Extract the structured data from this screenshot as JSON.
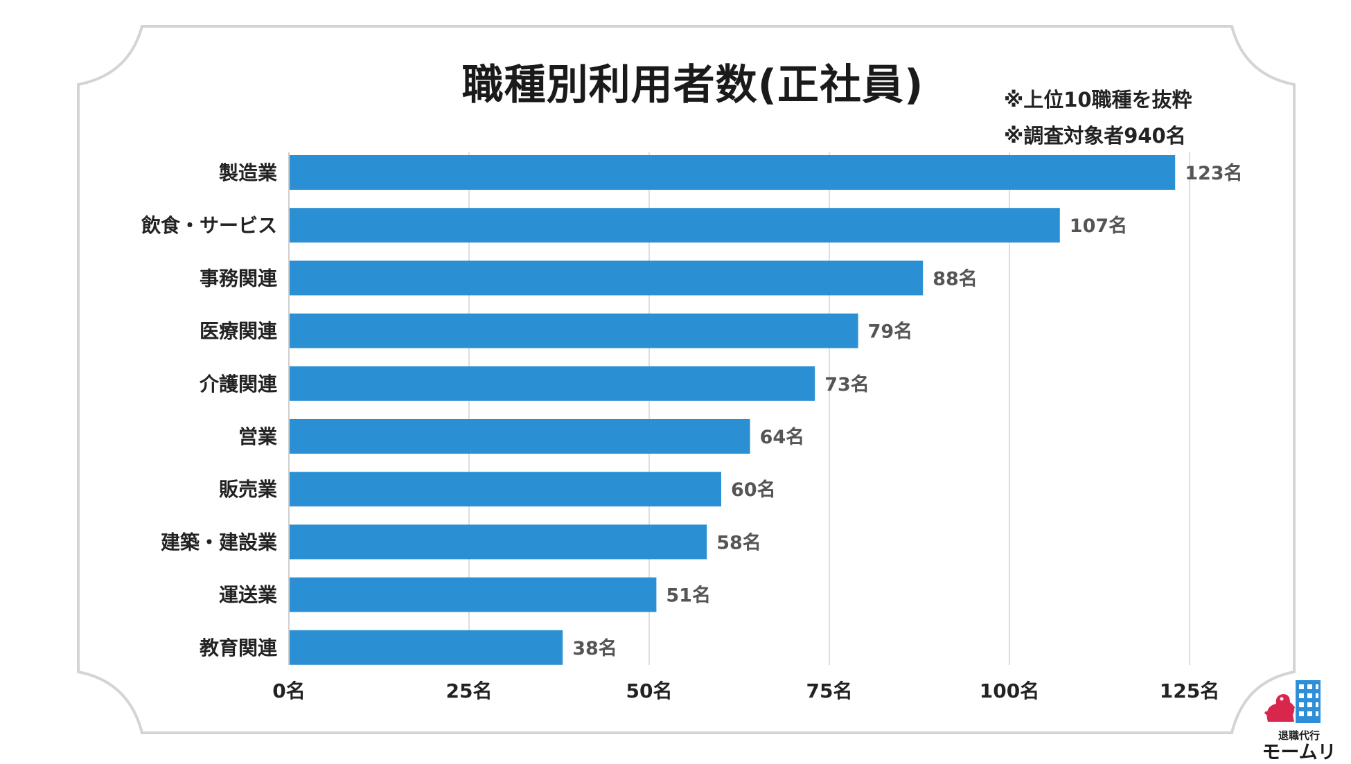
{
  "chart_data": {
    "type": "bar",
    "orientation": "horizontal",
    "title": "職種別利用者数(正社員)",
    "notes": [
      "※上位10職種を抜粋",
      "※調査対象者940名"
    ],
    "categories": [
      "製造業",
      "飲食・サービス",
      "事務関連",
      "医療関連",
      "介護関連",
      "営業",
      "販売業",
      "建築・建設業",
      "運送業",
      "教育関連"
    ],
    "values": [
      123,
      107,
      88,
      79,
      73,
      64,
      60,
      58,
      51,
      38
    ],
    "value_labels": [
      "123名",
      "107名",
      "88名",
      "79名",
      "73名",
      "64名",
      "60名",
      "58名",
      "51名",
      "38名"
    ],
    "xticks": [
      0,
      25,
      50,
      75,
      100,
      125
    ],
    "xtick_labels": [
      "0名",
      "25名",
      "50名",
      "75名",
      "100名",
      "125名"
    ],
    "xlim": [
      0,
      125
    ],
    "grid": "vertical",
    "legend": "none",
    "bar_color": "#2b90d3"
  },
  "logo": {
    "sub": "退職代行",
    "main": "モームリ",
    "accent": "#d9264c",
    "building_color": "#2e8fd8"
  }
}
